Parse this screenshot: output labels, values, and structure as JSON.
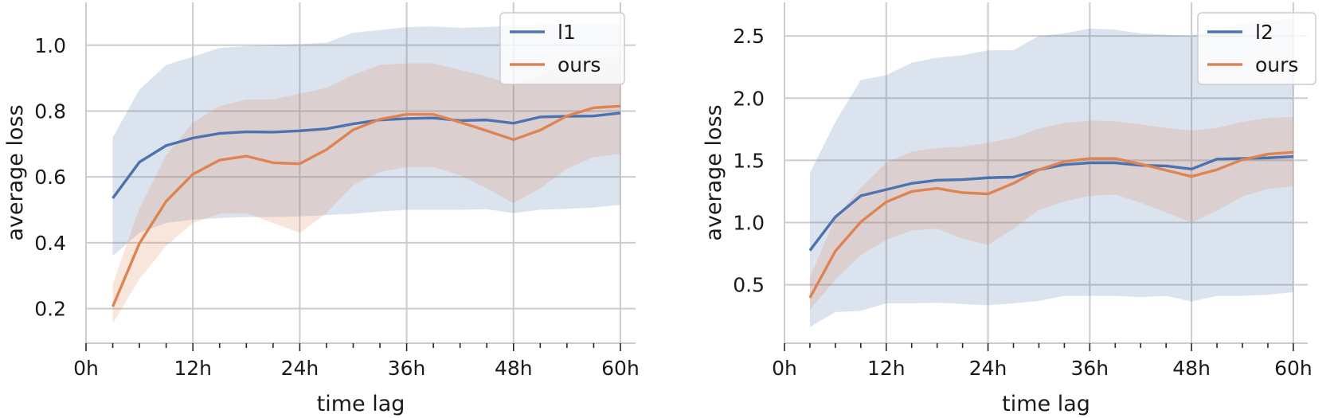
{
  "chart_data": [
    {
      "type": "line",
      "xlabel": "time lag",
      "ylabel": "average loss",
      "x": [
        3,
        6,
        9,
        12,
        15,
        18,
        21,
        24,
        27,
        30,
        33,
        36,
        39,
        42,
        45,
        48,
        51,
        54,
        57,
        60
      ],
      "xlim": [
        0,
        61.7
      ],
      "ylim": [
        0.095,
        1.13
      ],
      "xticks": [
        0,
        12,
        24,
        36,
        48,
        60
      ],
      "xtick_labels": [
        "0h",
        "12h",
        "24h",
        "36h",
        "48h",
        "60h"
      ],
      "yticks": [
        0.2,
        0.4,
        0.6,
        0.8,
        1.0
      ],
      "ytick_labels": [
        "0.2",
        "0.4",
        "0.6",
        "0.8",
        "1.0"
      ],
      "grid": true,
      "legend_position": "top-right",
      "series": [
        {
          "name": "l1",
          "color": "#4c72b0",
          "values": [
            0.535,
            0.645,
            0.695,
            0.718,
            0.732,
            0.737,
            0.736,
            0.74,
            0.746,
            0.761,
            0.773,
            0.777,
            0.779,
            0.771,
            0.773,
            0.763,
            0.782,
            0.784,
            0.785,
            0.794
          ],
          "lower": [
            0.36,
            0.43,
            0.46,
            0.47,
            0.475,
            0.478,
            0.478,
            0.48,
            0.484,
            0.488,
            0.495,
            0.5,
            0.5,
            0.5,
            0.502,
            0.49,
            0.5,
            0.503,
            0.507,
            0.515
          ],
          "upper": [
            0.72,
            0.865,
            0.94,
            0.965,
            0.992,
            0.997,
            1.0,
            1.003,
            1.008,
            1.038,
            1.046,
            1.055,
            1.057,
            1.053,
            1.055,
            1.06,
            1.062,
            1.062,
            1.063,
            1.065
          ]
        },
        {
          "name": "ours",
          "color": "#dd8452",
          "values": [
            0.206,
            0.398,
            0.526,
            0.608,
            0.651,
            0.663,
            0.643,
            0.64,
            0.683,
            0.743,
            0.775,
            0.79,
            0.79,
            0.766,
            0.74,
            0.713,
            0.742,
            0.785,
            0.81,
            0.815
          ],
          "lower": [
            0.155,
            0.29,
            0.39,
            0.46,
            0.488,
            0.49,
            0.46,
            0.43,
            0.49,
            0.575,
            0.615,
            0.63,
            0.63,
            0.605,
            0.565,
            0.52,
            0.565,
            0.625,
            0.66,
            0.67
          ],
          "upper": [
            0.275,
            0.505,
            0.665,
            0.765,
            0.815,
            0.835,
            0.835,
            0.853,
            0.87,
            0.91,
            0.94,
            0.945,
            0.945,
            0.925,
            0.905,
            0.88,
            0.91,
            0.95,
            0.96,
            0.96
          ]
        }
      ]
    },
    {
      "type": "line",
      "xlabel": "time lag",
      "ylabel": "average loss",
      "x": [
        3,
        6,
        9,
        12,
        15,
        18,
        21,
        24,
        27,
        30,
        33,
        36,
        39,
        42,
        45,
        48,
        51,
        54,
        57,
        60
      ],
      "xlim": [
        0,
        61.7
      ],
      "ylim": [
        0.03,
        2.77
      ],
      "xticks": [
        0,
        12,
        24,
        36,
        48,
        60
      ],
      "xtick_labels": [
        "0h",
        "12h",
        "24h",
        "36h",
        "48h",
        "60h"
      ],
      "yticks": [
        0.5,
        1.0,
        1.5,
        2.0,
        2.5
      ],
      "ytick_labels": [
        "0.5",
        "1.0",
        "1.5",
        "2.0",
        "2.5"
      ],
      "grid": true,
      "legend_position": "top-right",
      "series": [
        {
          "name": "l2",
          "color": "#4c72b0",
          "values": [
            0.775,
            1.045,
            1.215,
            1.265,
            1.315,
            1.34,
            1.345,
            1.36,
            1.365,
            1.425,
            1.465,
            1.48,
            1.48,
            1.46,
            1.455,
            1.43,
            1.51,
            1.515,
            1.52,
            1.53
          ],
          "lower": [
            0.16,
            0.28,
            0.29,
            0.35,
            0.35,
            0.355,
            0.345,
            0.335,
            0.35,
            0.37,
            0.41,
            0.41,
            0.41,
            0.4,
            0.41,
            0.365,
            0.41,
            0.41,
            0.42,
            0.44
          ],
          "upper": [
            1.4,
            1.81,
            2.145,
            2.185,
            2.285,
            2.325,
            2.345,
            2.385,
            2.385,
            2.5,
            2.52,
            2.56,
            2.55,
            2.52,
            2.51,
            2.5,
            2.55,
            2.6,
            2.62,
            2.64
          ]
        },
        {
          "name": "ours",
          "color": "#dd8452",
          "values": [
            0.395,
            0.77,
            1.005,
            1.165,
            1.25,
            1.275,
            1.24,
            1.23,
            1.315,
            1.425,
            1.49,
            1.515,
            1.515,
            1.47,
            1.42,
            1.37,
            1.425,
            1.505,
            1.55,
            1.565
          ],
          "lower": [
            0.3,
            0.54,
            0.74,
            0.86,
            0.935,
            0.95,
            0.87,
            0.82,
            0.95,
            1.1,
            1.17,
            1.215,
            1.225,
            1.16,
            1.08,
            1.0,
            1.095,
            1.21,
            1.27,
            1.29
          ],
          "upper": [
            0.56,
            1.04,
            1.28,
            1.48,
            1.57,
            1.6,
            1.61,
            1.64,
            1.68,
            1.755,
            1.8,
            1.82,
            1.815,
            1.79,
            1.76,
            1.74,
            1.76,
            1.81,
            1.84,
            1.85
          ]
        }
      ]
    }
  ]
}
